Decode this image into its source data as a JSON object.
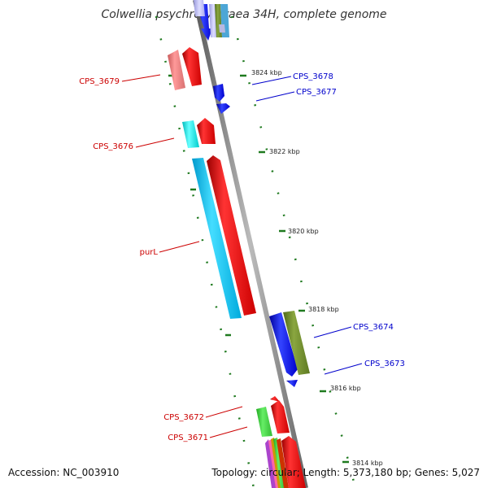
{
  "title": "Colwellia psychrerythraea 34H, complete genome",
  "accession": "Accession: NC_003910",
  "summary": "Topology: circular; Length: 5,373,180 bp; Genes: 5,027",
  "colors": {
    "red_label": "#cc0000",
    "blue_label": "#0000cc",
    "backbone": "#808080",
    "tick_green": "#1f7a1f"
  },
  "ticks": [
    "3824 kbp",
    "3822 kbp",
    "3820 kbp",
    "3818 kbp",
    "3816 kbp",
    "3814 kbp"
  ],
  "genes": {
    "cps3679": "CPS_3679",
    "cps3678": "CPS_3678",
    "cps3677": "CPS_3677",
    "cps3676": "CPS_3676",
    "purl": "purL",
    "cps3674": "CPS_3674",
    "cps3673": "CPS_3673",
    "cps3672": "CPS_3672",
    "cps3671": "CPS_3671"
  }
}
